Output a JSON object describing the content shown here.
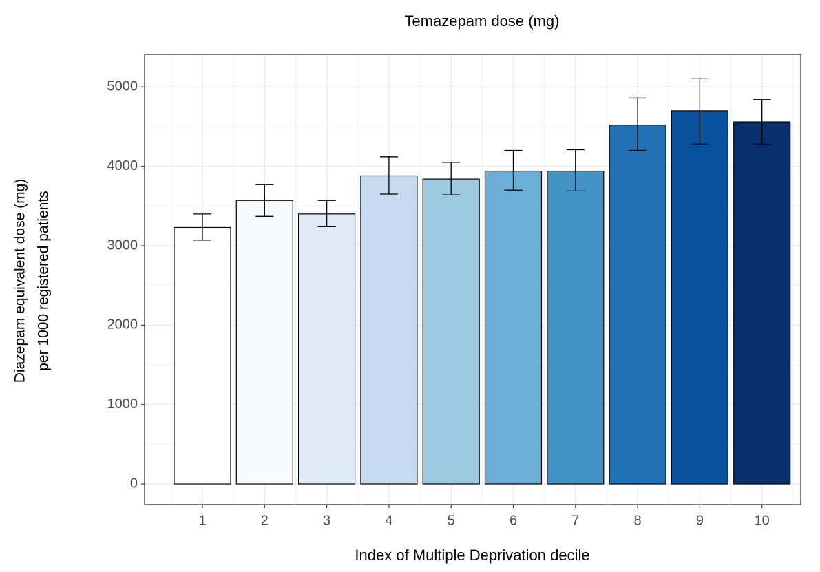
{
  "chart_data": {
    "type": "bar",
    "title": "Temazepam dose (mg)",
    "x_label": "Index of Multiple Deprivation decile",
    "y_label": [
      "Diazepam equivalent dose (mg)",
      "per 1000 registered patients"
    ],
    "categories": [
      "1",
      "2",
      "3",
      "4",
      "5",
      "6",
      "7",
      "8",
      "9",
      "10"
    ],
    "values": [
      3230,
      3570,
      3400,
      3880,
      3840,
      3940,
      3940,
      4520,
      4700,
      4560
    ],
    "lower": [
      3070,
      3370,
      3240,
      3650,
      3640,
      3700,
      3690,
      4200,
      4280,
      4280
    ],
    "upper": [
      3400,
      3770,
      3570,
      4120,
      4050,
      4200,
      4210,
      4860,
      5110,
      4840
    ],
    "colors": [
      "#ffffff",
      "#f7fbff",
      "#deebf7",
      "#c6dbef",
      "#9ecae1",
      "#6baed6",
      "#4292c6",
      "#2171b5",
      "#08519c",
      "#08306b"
    ],
    "ylim": [
      -260,
      5410
    ],
    "yticks": [
      0,
      1000,
      2000,
      3000,
      4000,
      5000
    ],
    "minor_yticks": [
      500,
      1500,
      2500,
      3500,
      4500
    ],
    "grid": true
  }
}
